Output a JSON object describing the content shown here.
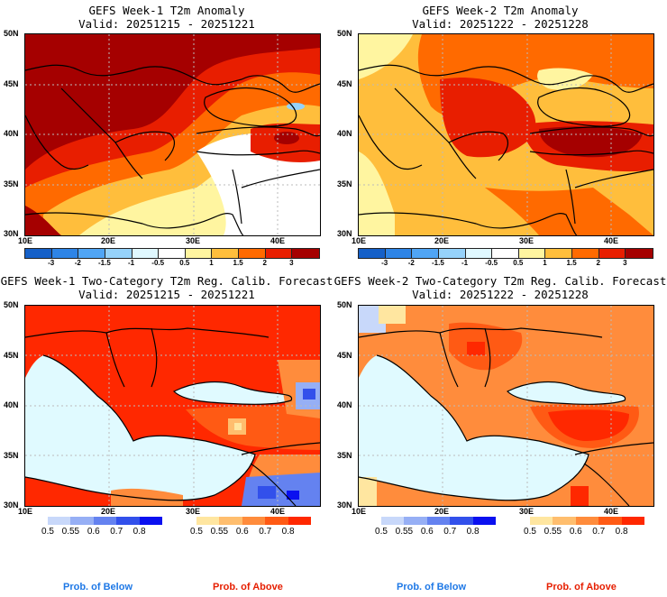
{
  "panels": [
    {
      "id": "week1-anomaly",
      "title": "GEFS Week-1 T2m Anomaly",
      "valid": "Valid: 20251215 - 20251221",
      "kind": "anomaly"
    },
    {
      "id": "week2-anomaly",
      "title": "GEFS Week-2 T2m Anomaly",
      "valid": "Valid: 20251222 - 20251228",
      "kind": "anomaly"
    },
    {
      "id": "week1-prob",
      "title": "GEFS Week-1 Two-Category T2m Reg. Calib. Forecast",
      "valid": "Valid: 20251215 - 20251221",
      "kind": "prob"
    },
    {
      "id": "week2-prob",
      "title": "GEFS Week-2 Two-Category T2m Reg. Calib. Forecast",
      "valid": "Valid: 20251222 - 20251228",
      "kind": "prob"
    }
  ],
  "axes": {
    "lat_labels": [
      "50N",
      "45N",
      "40N",
      "35N",
      "30N"
    ],
    "lon_labels": [
      "10E",
      "20E",
      "30E",
      "40E"
    ],
    "lat_range": [
      30,
      50
    ],
    "lon_range": [
      10,
      45
    ]
  },
  "anomaly_colorbar": {
    "colors": [
      "#1560c8",
      "#2e84e6",
      "#50a5f5",
      "#96d2fa",
      "#e0f8ff",
      "#ffffff",
      "#fff5a0",
      "#ffbe3c",
      "#ff6a00",
      "#e81e00",
      "#a50000"
    ],
    "labels": [
      "-3",
      "-2",
      "-1.5",
      "-1",
      "-0.5",
      "0.5",
      "1",
      "1.5",
      "2",
      "3"
    ]
  },
  "prob_below_colorbar": {
    "colors": [
      "#c8d8fa",
      "#96aff5",
      "#6482f0",
      "#3250eb",
      "#0a10f0"
    ],
    "labels": [
      "0.5",
      "0.55",
      "0.6",
      "0.7",
      "0.8"
    ]
  },
  "prob_above_colorbar": {
    "colors": [
      "#ffe6a0",
      "#ffbe6e",
      "#ff8c3c",
      "#ff5a14",
      "#ff2800"
    ],
    "labels": [
      "0.5",
      "0.55",
      "0.6",
      "0.7",
      "0.8"
    ]
  },
  "legend": {
    "below_label": "Prob. of Below",
    "above_label": "Prob. of Above",
    "below_color": "#1e78e6",
    "above_color": "#e61e00"
  },
  "map_colors": {
    "sea_prob": "#e0faff",
    "land_outline": "#000000"
  }
}
